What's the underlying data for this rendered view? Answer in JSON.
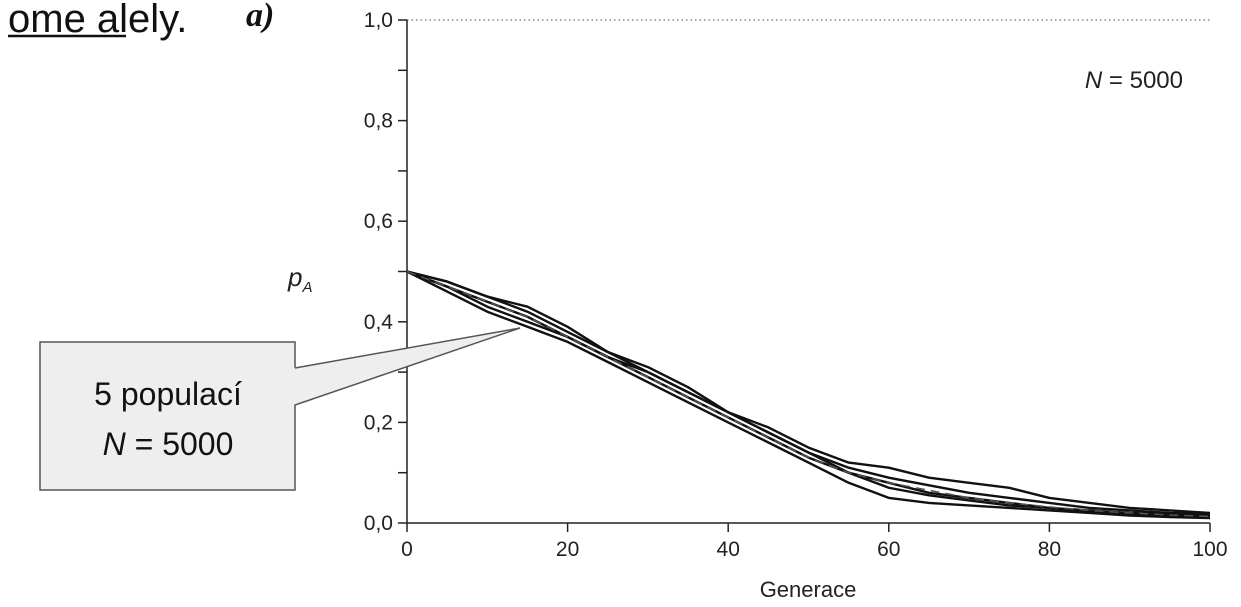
{
  "slide": {
    "heading_fragment": "ome alely.",
    "panel_label": "a)"
  },
  "callout": {
    "line1": "5 populací",
    "line2_var": "N",
    "line2_rest": " = 5000"
  },
  "chart_data": {
    "type": "line",
    "annotation": {
      "var": "N",
      "rest": " = 5000"
    },
    "xlabel": "Generace",
    "ylabel_main": "p",
    "ylabel_sub": "A",
    "xlim": [
      0,
      100
    ],
    "ylim": [
      0,
      1
    ],
    "x_ticks": [
      0,
      20,
      40,
      60,
      80,
      100
    ],
    "y_ticks": [
      0,
      0.2,
      0.4,
      0.6,
      0.8,
      1.0
    ],
    "y_tick_labels": [
      "0,0",
      "0,2",
      "0,4",
      "0,6",
      "0,8",
      "1,0"
    ],
    "x_tick_labels": [
      "0",
      "20",
      "40",
      "60",
      "80",
      "100"
    ],
    "reference_line_y": 1.0,
    "x": [
      0,
      5,
      10,
      15,
      20,
      25,
      30,
      35,
      40,
      45,
      50,
      55,
      60,
      65,
      70,
      75,
      80,
      85,
      90,
      95,
      100
    ],
    "series": [
      {
        "style": "solid",
        "values": [
          0.5,
          0.47,
          0.44,
          0.41,
          0.37,
          0.33,
          0.29,
          0.25,
          0.21,
          0.17,
          0.13,
          0.1,
          0.08,
          0.06,
          0.05,
          0.04,
          0.03,
          0.025,
          0.02,
          0.017,
          0.015
        ]
      },
      {
        "style": "solid",
        "values": [
          0.5,
          0.46,
          0.42,
          0.39,
          0.36,
          0.32,
          0.28,
          0.24,
          0.2,
          0.16,
          0.12,
          0.08,
          0.05,
          0.04,
          0.035,
          0.03,
          0.025,
          0.02,
          0.015,
          0.012,
          0.01
        ]
      },
      {
        "style": "solid",
        "values": [
          0.5,
          0.48,
          0.45,
          0.42,
          0.38,
          0.34,
          0.3,
          0.26,
          0.22,
          0.18,
          0.14,
          0.11,
          0.09,
          0.075,
          0.06,
          0.05,
          0.04,
          0.03,
          0.025,
          0.02,
          0.018
        ]
      },
      {
        "style": "solid",
        "values": [
          0.5,
          0.47,
          0.43,
          0.4,
          0.37,
          0.33,
          0.3,
          0.26,
          0.22,
          0.19,
          0.15,
          0.12,
          0.11,
          0.09,
          0.08,
          0.07,
          0.05,
          0.04,
          0.03,
          0.025,
          0.02
        ]
      },
      {
        "style": "solid",
        "values": [
          0.5,
          0.48,
          0.45,
          0.43,
          0.39,
          0.34,
          0.31,
          0.27,
          0.22,
          0.18,
          0.14,
          0.1,
          0.07,
          0.055,
          0.045,
          0.035,
          0.03,
          0.022,
          0.018,
          0.014,
          0.012
        ]
      },
      {
        "style": "dashed",
        "values": [
          0.5,
          0.47,
          0.44,
          0.41,
          0.37,
          0.33,
          0.29,
          0.25,
          0.21,
          0.17,
          0.13,
          0.1,
          0.08,
          0.065,
          0.05,
          0.04,
          0.032,
          0.025,
          0.02,
          0.016,
          0.013
        ]
      }
    ]
  }
}
